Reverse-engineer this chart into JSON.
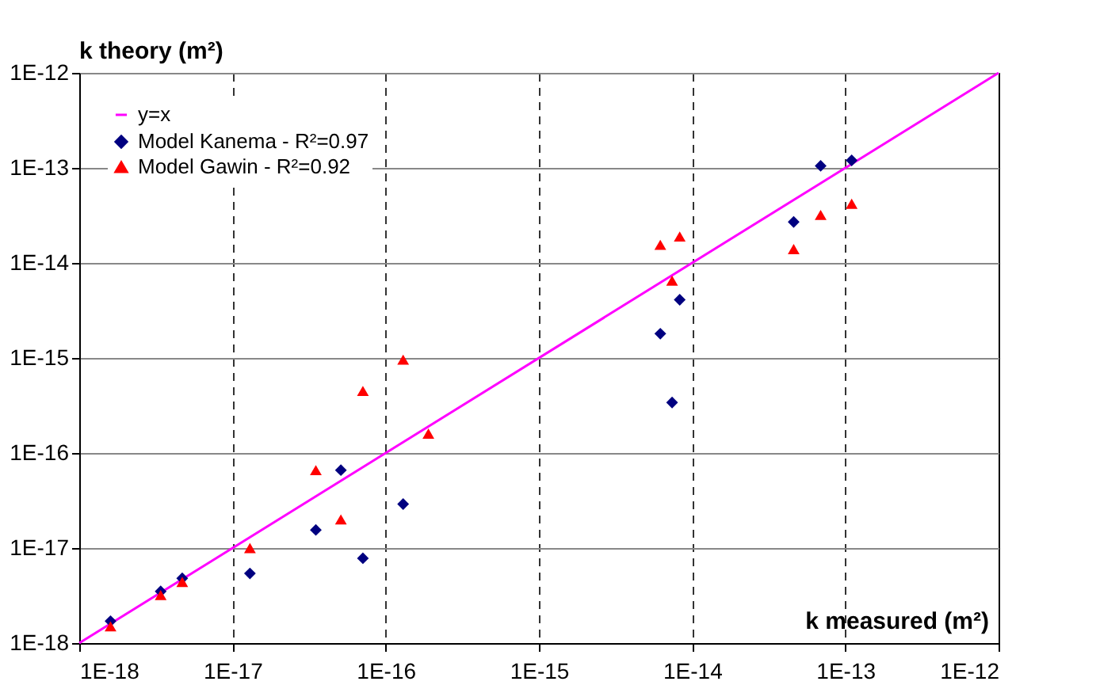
{
  "chart_data": {
    "type": "scatter",
    "xlabel": "k measured (m²)",
    "ylabel": "k theory (m²)",
    "log": "xy",
    "grid": true,
    "legend": "top left",
    "xlim": [
      1e-18,
      1e-12
    ],
    "ylim": [
      1e-18,
      1e-12
    ],
    "xticks": [
      {
        "value": 1e-18,
        "label": "1E-18"
      },
      {
        "value": 1e-17,
        "label": "1E-17"
      },
      {
        "value": 1e-16,
        "label": "1E-16"
      },
      {
        "value": 1e-15,
        "label": "1E-15"
      },
      {
        "value": 1e-14,
        "label": "1E-14"
      },
      {
        "value": 1e-13,
        "label": "1E-13"
      },
      {
        "value": 1e-12,
        "label": "1E-12"
      }
    ],
    "yticks": [
      {
        "value": 1e-18,
        "label": "1E-18"
      },
      {
        "value": 1e-17,
        "label": "1E-17"
      },
      {
        "value": 1e-16,
        "label": "1E-16"
      },
      {
        "value": 1e-15,
        "label": "1E-15"
      },
      {
        "value": 1e-14,
        "label": "1E-14"
      },
      {
        "value": 1e-13,
        "label": "1E-13"
      },
      {
        "value": 1e-12,
        "label": "1E-12"
      }
    ],
    "series": [
      {
        "name": "y=x",
        "type": "line",
        "color": "#ff00ff",
        "marker": "none",
        "line_style": "solid",
        "x": [
          1e-18,
          1e-12
        ],
        "values": [
          1e-18,
          1e-12
        ]
      },
      {
        "name": "Model Kanema - R²=0.97",
        "color": "#000080",
        "marker": "diamond",
        "x": [
          1.6e-18,
          3.4e-18,
          4.7e-18,
          1.3e-17,
          3.5e-17,
          5.1e-17,
          7.1e-17,
          1.3e-16,
          6.2e-15,
          8.3e-15,
          7.4e-15,
          4.6e-14,
          6.9e-14,
          1.1e-13
        ],
        "values": [
          1.7e-18,
          3.5e-18,
          4.8e-18,
          5.4e-18,
          1.55e-17,
          6.6e-17,
          7.8e-18,
          2.9e-17,
          1.8e-15,
          4.1e-15,
          3.4e-16,
          2.7e-14,
          1.05e-13,
          1.2e-13
        ]
      },
      {
        "name": "Model Gawin - R²=0.92",
        "color": "#ff0000",
        "marker": "triangle",
        "x": [
          1.6e-18,
          3.4e-18,
          4.7e-18,
          1.3e-17,
          3.5e-17,
          5.1e-17,
          7.1e-17,
          1.3e-16,
          1.9e-16,
          6.2e-15,
          8.3e-15,
          7.4e-15,
          4.6e-14,
          6.9e-14,
          1.1e-13
        ],
        "values": [
          1.5e-18,
          3.2e-18,
          4.4e-18,
          1e-17,
          6.6e-17,
          2e-17,
          4.5e-16,
          9.6e-16,
          1.6e-16,
          1.55e-14,
          1.9e-14,
          6.5e-15,
          1.4e-14,
          3.2e-14,
          4.2e-14
        ]
      }
    ]
  }
}
